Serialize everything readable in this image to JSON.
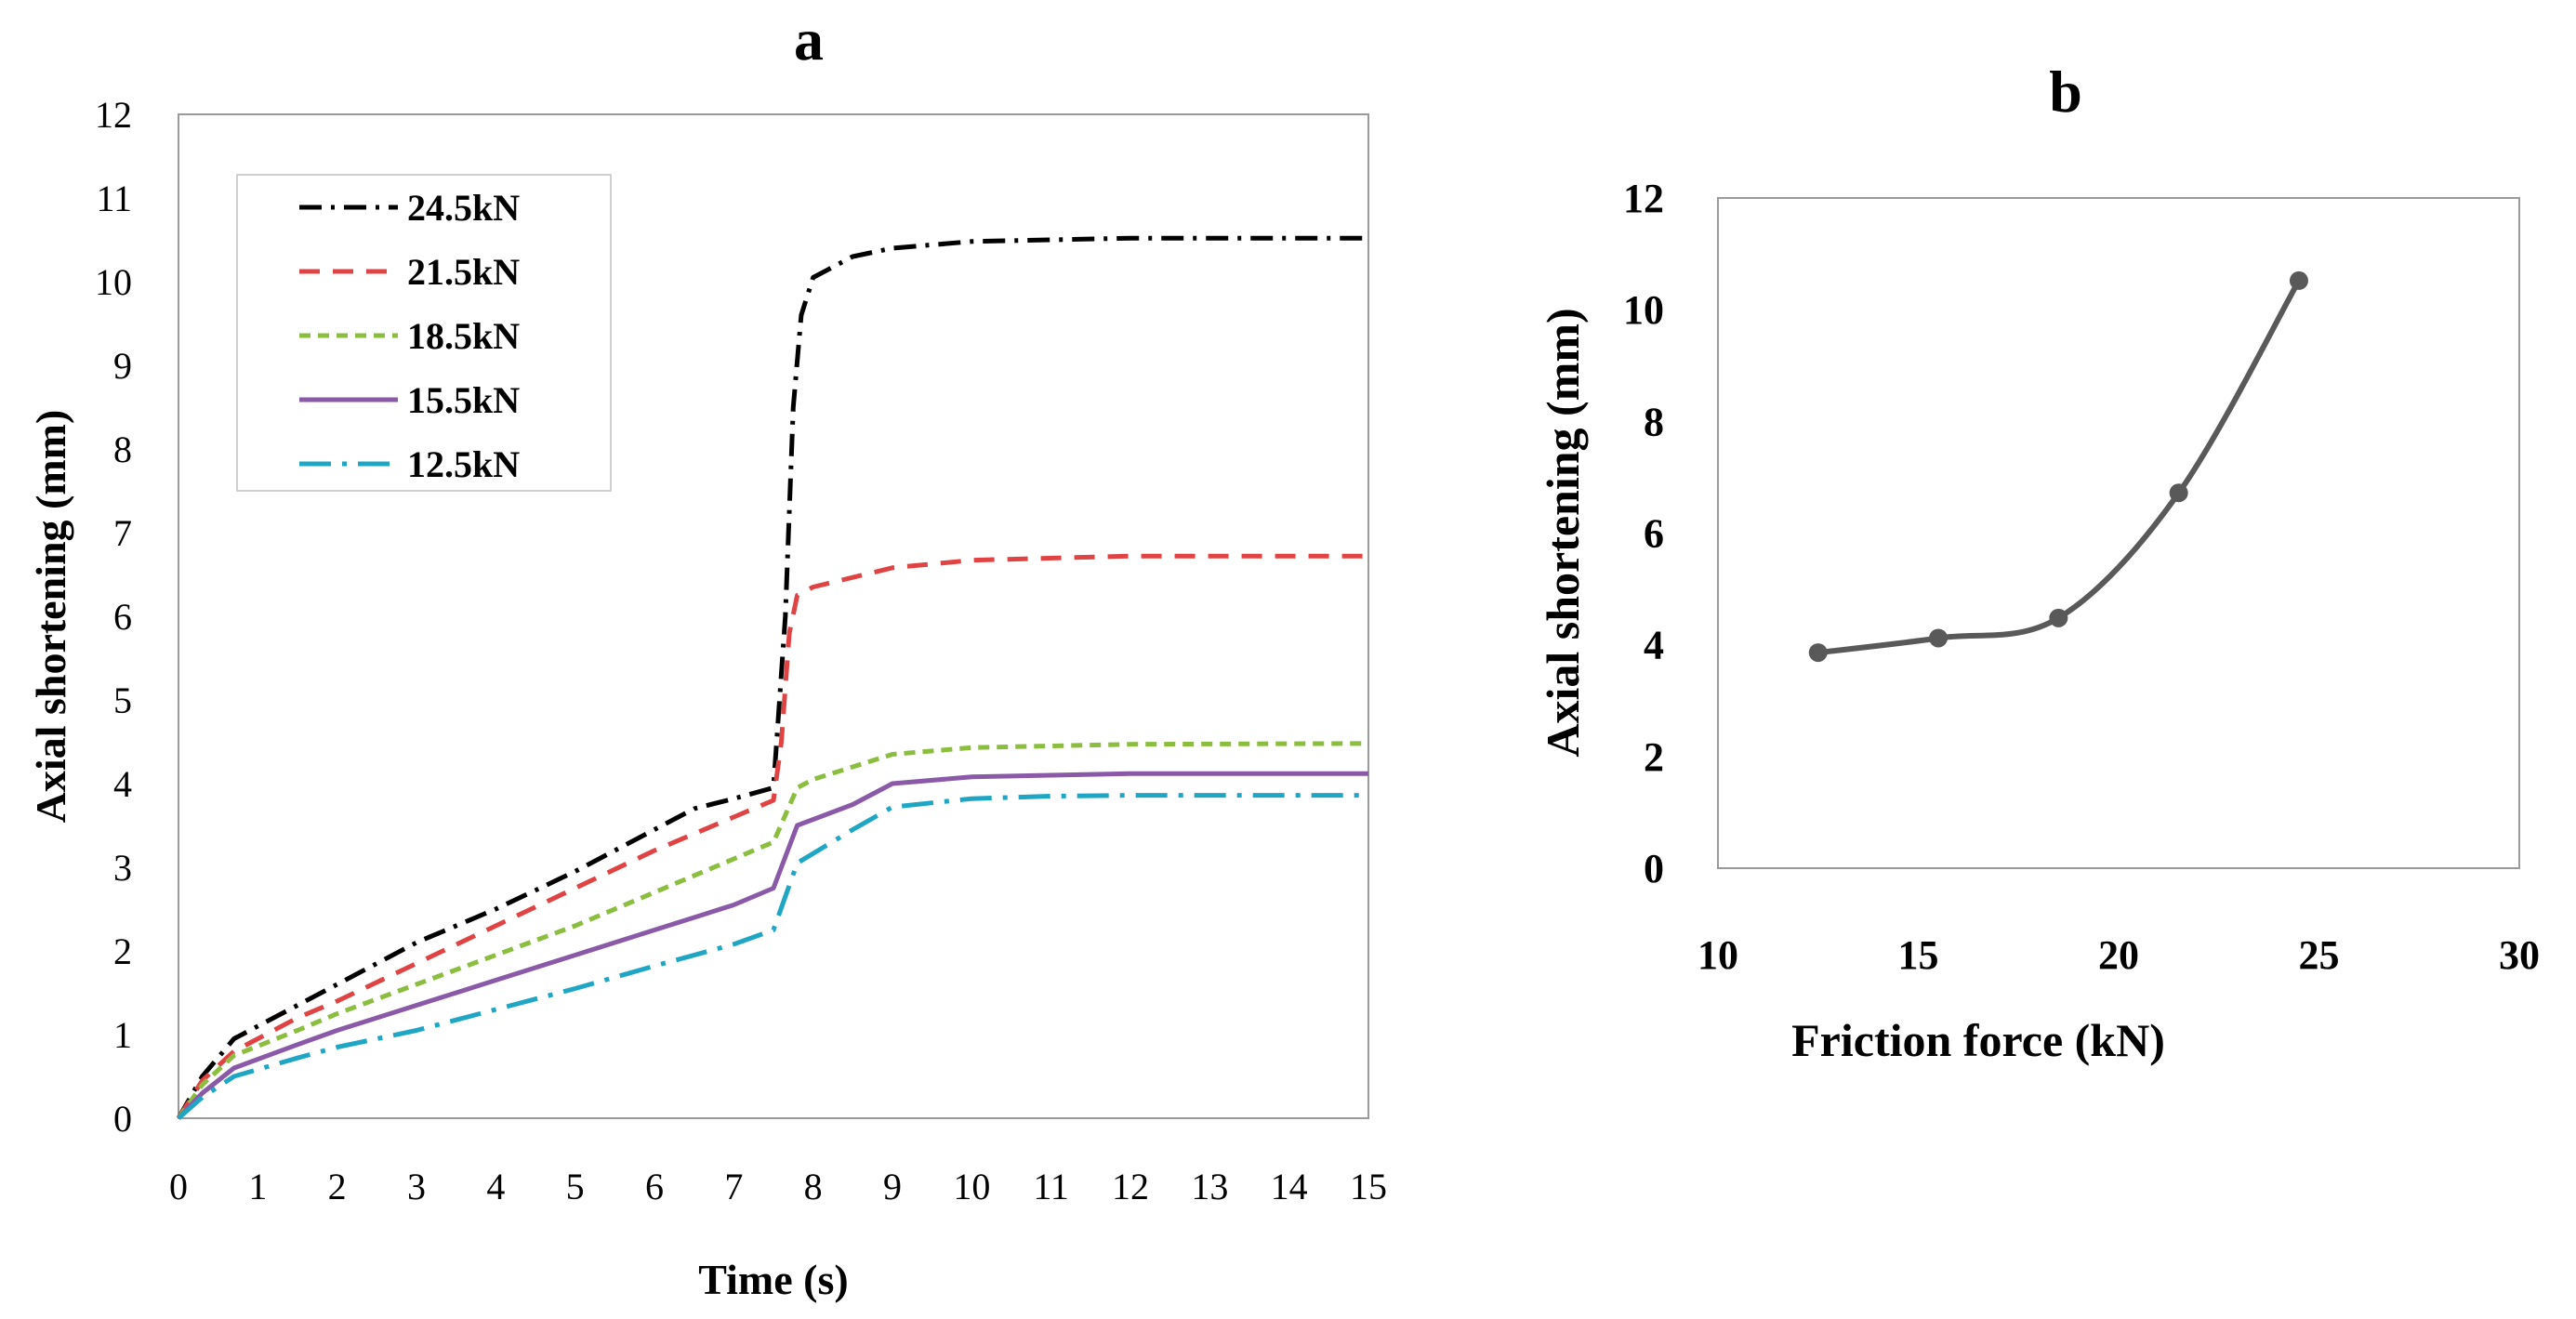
{
  "chart_data": [
    {
      "panel": "a",
      "type": "line",
      "title": "a",
      "xlabel": "Time (s)",
      "ylabel": "Axial shortening (mm)",
      "xlim": [
        0,
        15
      ],
      "ylim": [
        0,
        12
      ],
      "xticks": [
        0,
        1,
        2,
        3,
        4,
        5,
        6,
        7,
        8,
        9,
        10,
        11,
        12,
        13,
        14,
        15
      ],
      "yticks": [
        0,
        1,
        2,
        3,
        4,
        5,
        6,
        7,
        8,
        9,
        10,
        11,
        12
      ],
      "grid": false,
      "legend": "top-left",
      "series": [
        {
          "name": "24.5kN",
          "color": "#000000",
          "dash": "dashdot",
          "points": [
            [
              0,
              0
            ],
            [
              0.3,
              0.5
            ],
            [
              0.7,
              0.95
            ],
            [
              1.5,
              1.35
            ],
            [
              2,
              1.6
            ],
            [
              3,
              2.1
            ],
            [
              4,
              2.5
            ],
            [
              5,
              2.95
            ],
            [
              6,
              3.45
            ],
            [
              6.5,
              3.7
            ],
            [
              7,
              3.82
            ],
            [
              7.5,
              3.95
            ],
            [
              7.65,
              6.0
            ],
            [
              7.75,
              8.5
            ],
            [
              7.85,
              9.6
            ],
            [
              8,
              10.05
            ],
            [
              8.5,
              10.3
            ],
            [
              9,
              10.4
            ],
            [
              10,
              10.48
            ],
            [
              12,
              10.52
            ],
            [
              15,
              10.52
            ]
          ]
        },
        {
          "name": "21.5kN",
          "color": "#e04343",
          "dash": "dash",
          "points": [
            [
              0,
              0
            ],
            [
              0.3,
              0.45
            ],
            [
              0.7,
              0.8
            ],
            [
              1.5,
              1.2
            ],
            [
              2,
              1.4
            ],
            [
              3,
              1.85
            ],
            [
              4,
              2.3
            ],
            [
              5,
              2.75
            ],
            [
              6,
              3.2
            ],
            [
              7,
              3.6
            ],
            [
              7.5,
              3.8
            ],
            [
              7.6,
              4.5
            ],
            [
              7.7,
              5.8
            ],
            [
              7.8,
              6.25
            ],
            [
              8,
              6.35
            ],
            [
              9,
              6.58
            ],
            [
              10,
              6.67
            ],
            [
              12,
              6.72
            ],
            [
              15,
              6.72
            ]
          ]
        },
        {
          "name": "18.5kN",
          "color": "#8bbd3f",
          "dash": "shortdash",
          "points": [
            [
              0,
              0
            ],
            [
              0.3,
              0.4
            ],
            [
              0.7,
              0.75
            ],
            [
              1.5,
              1.05
            ],
            [
              2,
              1.25
            ],
            [
              3,
              1.6
            ],
            [
              4,
              1.95
            ],
            [
              5,
              2.3
            ],
            [
              6,
              2.7
            ],
            [
              7,
              3.1
            ],
            [
              7.5,
              3.3
            ],
            [
              7.8,
              3.95
            ],
            [
              8,
              4.05
            ],
            [
              8.5,
              4.2
            ],
            [
              9,
              4.35
            ],
            [
              10,
              4.43
            ],
            [
              12,
              4.47
            ],
            [
              15,
              4.48
            ]
          ]
        },
        {
          "name": "15.5kN",
          "color": "#8a5aa8",
          "dash": "solid",
          "points": [
            [
              0,
              0
            ],
            [
              0.3,
              0.3
            ],
            [
              0.7,
              0.6
            ],
            [
              1.5,
              0.88
            ],
            [
              2,
              1.05
            ],
            [
              3,
              1.35
            ],
            [
              4,
              1.65
            ],
            [
              5,
              1.95
            ],
            [
              6,
              2.25
            ],
            [
              7,
              2.55
            ],
            [
              7.5,
              2.75
            ],
            [
              7.8,
              3.5
            ],
            [
              8.5,
              3.75
            ],
            [
              9,
              4.0
            ],
            [
              10,
              4.08
            ],
            [
              11,
              4.1
            ],
            [
              12,
              4.12
            ],
            [
              15,
              4.12
            ]
          ]
        },
        {
          "name": "12.5kN",
          "color": "#1fa6c4",
          "dash": "longdashdot",
          "points": [
            [
              0,
              0
            ],
            [
              0.3,
              0.25
            ],
            [
              0.7,
              0.5
            ],
            [
              1.5,
              0.72
            ],
            [
              2,
              0.85
            ],
            [
              3,
              1.05
            ],
            [
              4,
              1.3
            ],
            [
              5,
              1.55
            ],
            [
              6,
              1.82
            ],
            [
              7,
              2.08
            ],
            [
              7.5,
              2.25
            ],
            [
              7.8,
              3.05
            ],
            [
              8.5,
              3.45
            ],
            [
              9,
              3.72
            ],
            [
              10,
              3.82
            ],
            [
              11,
              3.85
            ],
            [
              12,
              3.86
            ],
            [
              15,
              3.86
            ]
          ]
        }
      ]
    },
    {
      "panel": "b",
      "type": "line",
      "title": "b",
      "xlabel": "Friction force (kN)",
      "ylabel": "Axial shortening (mm)",
      "xlim": [
        10,
        30
      ],
      "ylim": [
        0,
        12
      ],
      "xticks": [
        10,
        15,
        20,
        25,
        30
      ],
      "yticks": [
        0,
        2,
        4,
        6,
        8,
        10,
        12
      ],
      "grid": false,
      "series": [
        {
          "name": "Axial shortening",
          "color": "#595959",
          "marker": "circle",
          "x": [
            12.5,
            15.5,
            18.5,
            21.5,
            24.5
          ],
          "y": [
            3.86,
            4.12,
            4.48,
            6.72,
            10.52
          ]
        }
      ]
    }
  ]
}
